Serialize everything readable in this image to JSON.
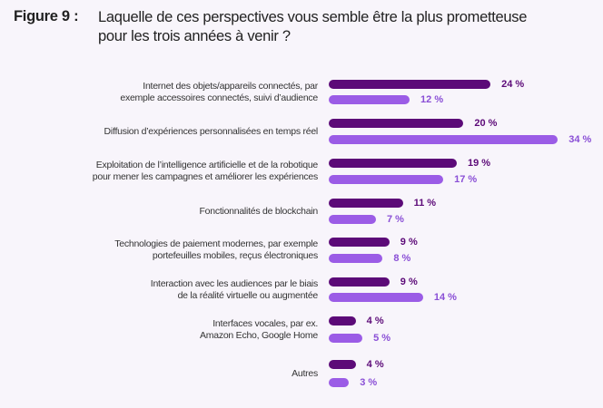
{
  "figure_label": "Figure 9 :",
  "chart_data": {
    "type": "bar",
    "orientation": "horizontal",
    "title": "Laquelle de ces perspectives vous semble être la plus prometteuse pour les trois années à venir ?",
    "title_lines": [
      "Laquelle de ces perspectives vous semble être la plus prometteuse",
      "pour les trois années à venir ?"
    ],
    "categories": [
      [
        "Internet des objets/appareils connectés, par",
        "exemple accessoires connectés, suivi d’audience"
      ],
      [
        "Diffusion d’expériences personnalisées en temps réel"
      ],
      [
        "Exploitation de l’intelligence artificielle et de la robotique",
        "pour mener les campagnes et améliorer les expériences"
      ],
      [
        "Fonctionnalités de blockchain"
      ],
      [
        "Technologies de paiement modernes, par exemple",
        "portefeuilles mobiles, reçus électroniques"
      ],
      [
        "Interaction avec les audiences par le biais",
        "de la réalité virtuelle ou augmentée"
      ],
      [
        "Interfaces vocales, par ex.",
        "Amazon Echo, Google Home"
      ],
      [
        "Autres"
      ]
    ],
    "series": [
      {
        "name": "series-1",
        "color": "#5c0a78",
        "values": [
          24,
          20,
          19,
          11,
          9,
          9,
          4,
          4
        ]
      },
      {
        "name": "series-2",
        "color": "#9b5ce6",
        "values": [
          12,
          34,
          17,
          7,
          8,
          14,
          5,
          3
        ]
      }
    ],
    "value_suffix": " %",
    "xlim": [
      0,
      34
    ],
    "grid": false,
    "legend": "none"
  }
}
